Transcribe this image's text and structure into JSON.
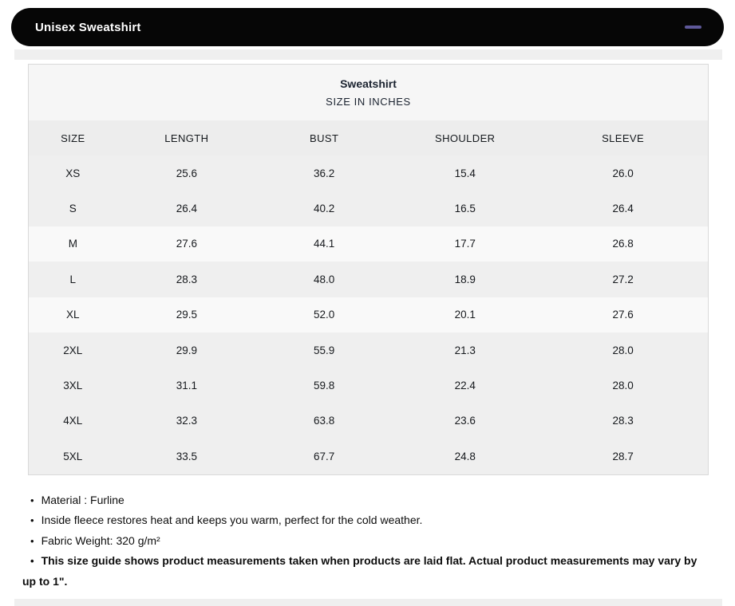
{
  "accordion": {
    "title": "Unisex Sweatshirt",
    "collapse_icon": "minus-icon",
    "bar_color": "#060606",
    "icon_color": "#5e5899"
  },
  "size_table": {
    "title": "Sweatshirt",
    "subtitle": "SIZE IN INCHES",
    "columns": [
      "SIZE",
      "LENGTH",
      "BUST",
      "SHOULDER",
      "SLEEVE"
    ],
    "rows": [
      {
        "size": "XS",
        "length": "25.6",
        "bust": "36.2",
        "shoulder": "15.4",
        "sleeve": "26.0",
        "shade": "gray"
      },
      {
        "size": "S",
        "length": "26.4",
        "bust": "40.2",
        "shoulder": "16.5",
        "sleeve": "26.4",
        "shade": "gray"
      },
      {
        "size": "M",
        "length": "27.6",
        "bust": "44.1",
        "shoulder": "17.7",
        "sleeve": "26.8",
        "shade": "light"
      },
      {
        "size": "L",
        "length": "28.3",
        "bust": "48.0",
        "shoulder": "18.9",
        "sleeve": "27.2",
        "shade": "gray"
      },
      {
        "size": "XL",
        "length": "29.5",
        "bust": "52.0",
        "shoulder": "20.1",
        "sleeve": "27.6",
        "shade": "light"
      },
      {
        "size": "2XL",
        "length": "29.9",
        "bust": "55.9",
        "shoulder": "21.3",
        "sleeve": "28.0",
        "shade": "gray"
      },
      {
        "size": "3XL",
        "length": "31.1",
        "bust": "59.8",
        "shoulder": "22.4",
        "sleeve": "28.0",
        "shade": "gray"
      },
      {
        "size": "4XL",
        "length": "32.3",
        "bust": "63.8",
        "shoulder": "23.6",
        "sleeve": "28.3",
        "shade": "gray"
      },
      {
        "size": "5XL",
        "length": "33.5",
        "bust": "67.7",
        "shoulder": "24.8",
        "sleeve": "28.7",
        "shade": "gray"
      }
    ]
  },
  "notes": {
    "bullet_glyph": "•",
    "items": [
      {
        "text": "Material : Furline",
        "bold": false
      },
      {
        "text": "Inside fleece restores heat and keeps you warm, perfect for the cold weather.",
        "bold": false
      },
      {
        "text": "Fabric Weight: 320 g/m²",
        "bold": false
      },
      {
        "text": "This size guide shows product measurements taken when products are laid flat. Actual product measurements may vary by up to 1\".",
        "bold": true
      }
    ]
  }
}
